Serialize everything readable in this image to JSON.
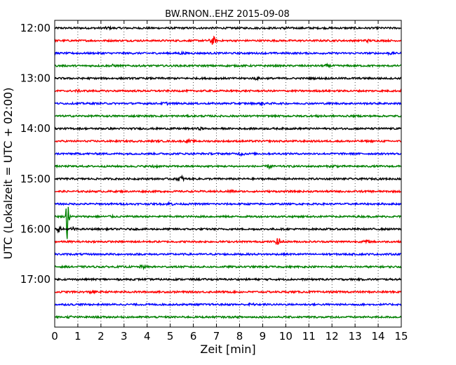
{
  "chart_data": {
    "type": "line",
    "title": "BW.RNON..EHZ 2015-09-08",
    "xlabel": "Zeit  [min]",
    "ylabel": "UTC (Lokalzeit = UTC + 02:00)",
    "xlim": [
      0,
      15
    ],
    "x_ticks": [
      "0",
      "1",
      "2",
      "3",
      "4",
      "5",
      "6",
      "7",
      "8",
      "9",
      "10",
      "11",
      "12",
      "13",
      "14",
      "15"
    ],
    "y_tick_labels": [
      "12:00",
      "13:00",
      "14:00",
      "15:00",
      "16:00",
      "17:00"
    ],
    "grid_x": "dotted",
    "trace_colors": [
      "#000000",
      "#ff0000",
      "#0000ff",
      "#008000"
    ],
    "traces_per_hour": 4,
    "minutes_per_trace": 15,
    "series": [
      {
        "start": "12:00",
        "events": [
          {
            "x": 2.3,
            "amp": 0.06
          },
          {
            "x": 10.0,
            "amp": 0.06
          }
        ]
      },
      {
        "start": "12:15",
        "events": [
          {
            "x": 6.85,
            "amp": 0.3
          },
          {
            "x": 13.5,
            "amp": 0.08
          }
        ]
      },
      {
        "start": "12:30",
        "events": [
          {
            "x": 5.5,
            "amp": 0.06
          },
          {
            "x": 14.5,
            "amp": 0.06
          }
        ]
      },
      {
        "start": "12:45",
        "events": [
          {
            "x": 2.5,
            "amp": 0.06
          },
          {
            "x": 11.8,
            "amp": 0.06
          }
        ]
      },
      {
        "start": "13:00",
        "events": [
          {
            "x": 8.7,
            "amp": 0.06
          }
        ]
      },
      {
        "start": "13:15",
        "events": [
          {
            "x": 1.0,
            "amp": 0.05
          }
        ]
      },
      {
        "start": "13:30",
        "events": [
          {
            "x": 4.8,
            "amp": 0.07
          },
          {
            "x": 9.0,
            "amp": 0.06
          }
        ]
      },
      {
        "start": "13:45",
        "events": [
          {
            "x": 11.5,
            "amp": 0.07
          }
        ]
      },
      {
        "start": "14:00",
        "events": [
          {
            "x": 6.3,
            "amp": 0.05
          }
        ]
      },
      {
        "start": "14:15",
        "events": [
          {
            "x": 5.8,
            "amp": 0.07
          },
          {
            "x": 12.9,
            "amp": 0.05
          }
        ]
      },
      {
        "start": "14:30",
        "events": [
          {
            "x": 8.1,
            "amp": 0.1
          }
        ]
      },
      {
        "start": "14:45",
        "events": [
          {
            "x": 4.3,
            "amp": 0.08
          },
          {
            "x": 9.3,
            "amp": 0.12
          },
          {
            "x": 12.1,
            "amp": 0.08
          }
        ]
      },
      {
        "start": "15:00",
        "events": [
          {
            "x": 5.45,
            "amp": 0.22
          }
        ]
      },
      {
        "start": "15:15",
        "events": [
          {
            "x": 7.6,
            "amp": 0.1
          }
        ]
      },
      {
        "start": "15:30",
        "events": [
          {
            "x": 5.0,
            "amp": 0.1
          }
        ]
      },
      {
        "start": "15:45",
        "events": [
          {
            "x": 0.55,
            "amp": 2.1
          },
          {
            "x": 2.4,
            "amp": 0.05
          }
        ]
      },
      {
        "start": "16:00",
        "events": [
          {
            "x": 0.2,
            "amp": 0.18
          },
          {
            "x": 0.8,
            "amp": 0.1
          }
        ]
      },
      {
        "start": "16:15",
        "events": [
          {
            "x": 9.7,
            "amp": 0.28
          },
          {
            "x": 13.5,
            "amp": 0.07
          }
        ]
      },
      {
        "start": "16:30",
        "events": []
      },
      {
        "start": "16:45",
        "events": [
          {
            "x": 3.8,
            "amp": 0.1
          }
        ]
      },
      {
        "start": "17:00",
        "events": []
      },
      {
        "start": "17:15",
        "events": [
          {
            "x": 1.6,
            "amp": 0.07
          }
        ]
      },
      {
        "start": "17:30",
        "events": [
          {
            "x": 8.5,
            "amp": 0.07
          }
        ]
      },
      {
        "start": "17:45",
        "events": [
          {
            "x": 0.7,
            "amp": 0.05
          }
        ]
      }
    ]
  }
}
